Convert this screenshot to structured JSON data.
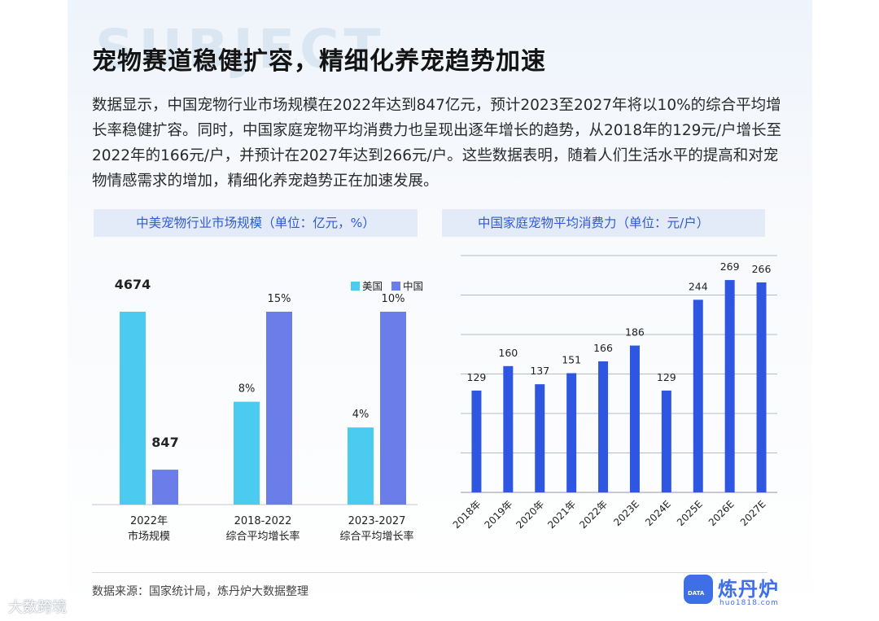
{
  "background_word": "SUBJECT",
  "title": "宠物赛道稳健扩容，精细化养宠趋势加速",
  "description": "数据显示，中国宠物行业市场规模在2022年达到847亿元，预计2023至2027年将以10%的综合平均增长率稳健扩容。同时，中国家庭宠物平均消费力也呈现出逐年增长的趋势，从2018年的129元/户增长至2022年的166元/户，并预计在2027年达到266元/户。这些数据表明，随着人们生活水平的提高和对宠物情感需求的增加，精细化养宠趋势正在加速发展。",
  "chart_data": [
    {
      "type": "bar",
      "title": "中美宠物行业市场规模（单位：亿元，%）",
      "categories": [
        "2022年\n市场规模",
        "2018-2022\n综合平均增长率",
        "2023-2027\n综合平均增长率"
      ],
      "category_lines": [
        [
          "2022年",
          "市场规模"
        ],
        [
          "2018-2022",
          "综合平均增长率"
        ],
        [
          "2023-2027",
          "综合平均增长率"
        ]
      ],
      "series": [
        {
          "name": "美国",
          "color": "#4ccbf0",
          "values": [
            4674,
            8,
            4
          ],
          "labels": [
            "4674",
            "8%",
            "4%"
          ]
        },
        {
          "name": "中国",
          "color": "#6a7de8",
          "values": [
            847,
            15,
            10
          ],
          "labels": [
            "847",
            "15%",
            "10%"
          ]
        }
      ],
      "legend": "top-right"
    },
    {
      "type": "bar",
      "title": "中国家庭宠物平均消费力（单位：元/户）",
      "categories": [
        "2018年",
        "2019年",
        "2020年",
        "2021年",
        "2022年",
        "2023E",
        "2024E",
        "2025E",
        "2026E",
        "2027E"
      ],
      "values": [
        129,
        160,
        137,
        151,
        166,
        186,
        129,
        244,
        269,
        266
      ],
      "color": "#2f56e0",
      "ylim": [
        0,
        300
      ],
      "grid": true
    }
  ],
  "source": "数据来源：国家统计局，炼丹炉大数据整理",
  "brand": {
    "name": "炼丹炉",
    "url": "huo1818.com",
    "logo_text": "DATA"
  },
  "watermark": "大数跨境"
}
